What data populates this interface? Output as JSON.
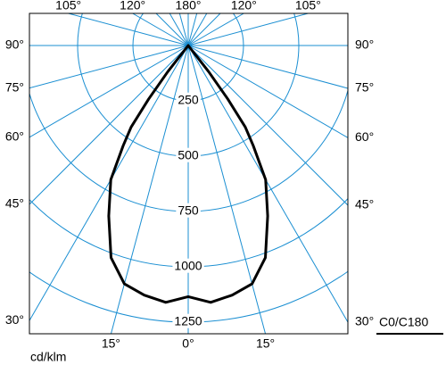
{
  "chart_data": {
    "type": "polar",
    "x": [
      -40,
      -38,
      -36.5,
      -35,
      -33,
      -30,
      -25,
      -20,
      -15,
      -10,
      -5,
      0,
      5,
      10,
      15,
      20,
      25,
      30,
      33,
      35,
      36.5,
      38,
      40
    ],
    "values": [
      0,
      150,
      300,
      450,
      540,
      700,
      850,
      1020,
      1115,
      1145,
      1165,
      1135,
      1165,
      1145,
      1115,
      1020,
      850,
      700,
      540,
      450,
      300,
      150,
      0
    ],
    "color": "#000000",
    "grid_color": "#1b8fd2",
    "rlim": [
      0,
      1250
    ],
    "rticks": [
      250,
      500,
      750,
      1000,
      1250
    ],
    "angle_ticks": {
      "left": [
        {
          "value": -90,
          "label": "90°"
        },
        {
          "value": -75,
          "label": "75°"
        },
        {
          "value": -60,
          "label": "60°"
        },
        {
          "value": -45,
          "label": "45°"
        },
        {
          "value": -30,
          "label": "30°"
        }
      ],
      "right": [
        {
          "value": 90,
          "label": "90°"
        },
        {
          "value": 75,
          "label": "75°"
        },
        {
          "value": 60,
          "label": "60°"
        },
        {
          "value": 45,
          "label": "45°"
        },
        {
          "value": 30,
          "label": "30°"
        }
      ],
      "top": [
        {
          "value": -105,
          "label": "105°"
        },
        {
          "value": -120,
          "label": "120°"
        },
        {
          "value": 180,
          "label": "180°"
        },
        {
          "value": 120,
          "label": "120°"
        },
        {
          "value": 105,
          "label": "105°"
        }
      ],
      "bottom": [
        {
          "value": -15,
          "label": "15°"
        },
        {
          "value": 0,
          "label": "0°"
        },
        {
          "value": 15,
          "label": "15°"
        }
      ]
    },
    "plane_label": "C0/C180",
    "unit_label": "cd/klm"
  }
}
